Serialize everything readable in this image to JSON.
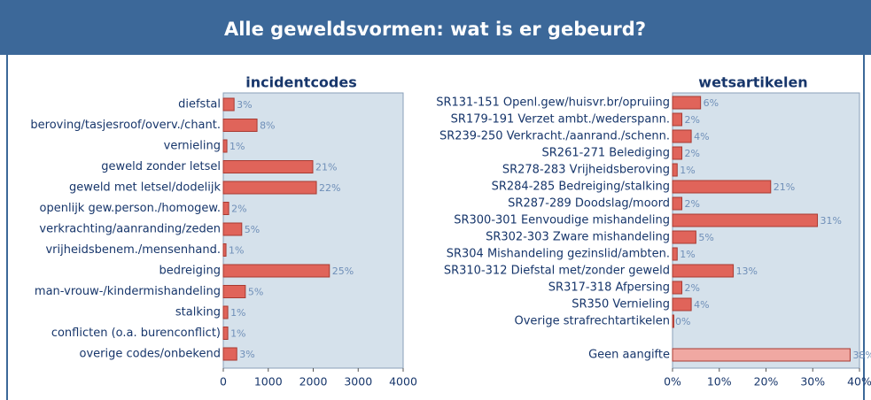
{
  "title": "Alle geweldsvormen: wat is er gebeurd?",
  "chart_data": [
    {
      "type": "barh",
      "title": "incidentcodes",
      "categories": [
        "diefstal",
        "beroving/tasjesroof/overv./chant.",
        "vernieling",
        "geweld zonder letsel",
        "geweld met letsel/dodelijk",
        "openlijk gew.person./homogew.",
        "verkrachting/aanranding/zeden",
        "vrijheidsbenem./mensenhand.",
        "bedreiging",
        "man-vrouw-/kindermishandeling",
        "stalking",
        "conflicten (o.a. burenconflict)",
        "overige codes/onbekend"
      ],
      "values": [
        240,
        750,
        80,
        1990,
        2070,
        120,
        410,
        60,
        2360,
        490,
        100,
        100,
        300
      ],
      "percent_labels": [
        "3%",
        "8%",
        "1%",
        "21%",
        "22%",
        "2%",
        "5%",
        "1%",
        "25%",
        "5%",
        "1%",
        "1%",
        "3%"
      ],
      "color": "#e0645a",
      "xlim": [
        0,
        4000
      ],
      "xticks": [
        0,
        1000,
        2000,
        3000,
        4000
      ]
    },
    {
      "type": "barh",
      "title": "wetsartikelen",
      "categories": [
        "SR131-151 Openl.gew/huisvr.br/opruiing",
        "SR179-191 Verzet ambt./wederspann.",
        "SR239-250 Verkracht./aanrand./schenn.",
        "SR261-271 Belediging",
        "SR278-283 Vrijheidsberoving",
        "SR284-285 Bedreiging/stalking",
        "SR287-289 Doodslag/moord",
        "SR300-301 Eenvoudige mishandeling",
        "SR302-303 Zware mishandeling",
        "SR304 Mishandeling gezinslid/ambten.",
        "SR310-312 Diefstal met/zonder geweld",
        "SR317-318 Afpersing",
        "SR350 Vernieling",
        "Overige strafrechtartikelen",
        "Geen aangifte"
      ],
      "values": [
        6,
        2,
        4,
        2,
        1,
        21,
        2,
        31,
        5,
        1,
        13,
        2,
        4,
        0,
        38
      ],
      "value_labels": [
        "6%",
        "2%",
        "4%",
        "2%",
        "1%",
        "21%",
        "2%",
        "31%",
        "5%",
        "1%",
        "13%",
        "2%",
        "4%",
        "0%",
        "38%"
      ],
      "colors": [
        "#e0645a",
        "#e0645a",
        "#e0645a",
        "#e0645a",
        "#e0645a",
        "#e0645a",
        "#e0645a",
        "#e0645a",
        "#e0645a",
        "#e0645a",
        "#e0645a",
        "#e0645a",
        "#e0645a",
        "#e0645a",
        "#f0a8a2"
      ],
      "xlim": [
        0,
        40
      ],
      "xticks": [
        {
          "value": 0,
          "label": "0%"
        },
        {
          "value": 10,
          "label": "10%"
        },
        {
          "value": 20,
          "label": "20%"
        },
        {
          "value": 30,
          "label": "30%"
        },
        {
          "value": 40,
          "label": "40%"
        }
      ]
    }
  ]
}
